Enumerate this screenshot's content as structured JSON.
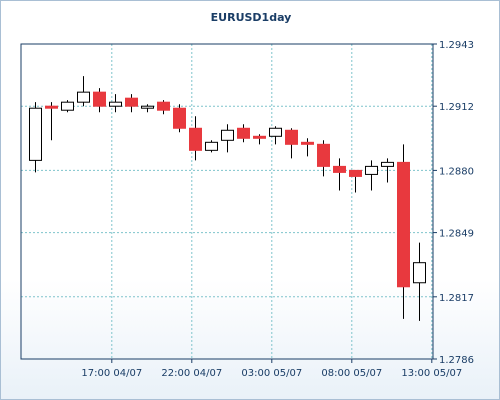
{
  "chart_data": {
    "type": "candlestick",
    "title": "EURUSD1day",
    "y_axis": {
      "position": "right",
      "ylim": [
        1.2786,
        1.2943
      ],
      "ticks": [
        "1.2943",
        "1.2912",
        "1.2880",
        "1.2849",
        "1.2817",
        "1.2786"
      ],
      "tick_values": [
        1.2943,
        1.2912,
        1.288,
        1.2849,
        1.2817,
        1.2786
      ]
    },
    "x_axis": {
      "ticks": [
        "17:00 04/07",
        "22:00 04/07",
        "03:00 05/07",
        "08:00 05/07",
        "13:00 05/07"
      ],
      "tick_candle_index": [
        4.8,
        9.8,
        14.8,
        19.8,
        24.8
      ]
    },
    "grid": true,
    "colors": {
      "bull_fill": "#ffffff",
      "bear_fill": "#e8393e",
      "outline": "#000000",
      "grid": "#7fc4cc",
      "axis": "#1a3d66"
    },
    "candles": [
      {
        "o": 1.2885,
        "h": 1.2914,
        "l": 1.2879,
        "c": 1.2911
      },
      {
        "o": 1.2912,
        "h": 1.2914,
        "l": 1.2895,
        "c": 1.2911
      },
      {
        "o": 1.291,
        "h": 1.2915,
        "l": 1.2909,
        "c": 1.2914
      },
      {
        "o": 1.2914,
        "h": 1.2927,
        "l": 1.2912,
        "c": 1.2919
      },
      {
        "o": 1.2919,
        "h": 1.2921,
        "l": 1.2909,
        "c": 1.2912
      },
      {
        "o": 1.2912,
        "h": 1.2918,
        "l": 1.2909,
        "c": 1.2914
      },
      {
        "o": 1.2916,
        "h": 1.2918,
        "l": 1.2909,
        "c": 1.2912
      },
      {
        "o": 1.2911,
        "h": 1.2913,
        "l": 1.2909,
        "c": 1.2912
      },
      {
        "o": 1.2914,
        "h": 1.2915,
        "l": 1.2908,
        "c": 1.291
      },
      {
        "o": 1.2911,
        "h": 1.2913,
        "l": 1.2899,
        "c": 1.2901
      },
      {
        "o": 1.2901,
        "h": 1.2907,
        "l": 1.2885,
        "c": 1.289
      },
      {
        "o": 1.289,
        "h": 1.2895,
        "l": 1.2889,
        "c": 1.2894
      },
      {
        "o": 1.2895,
        "h": 1.2903,
        "l": 1.2889,
        "c": 1.29
      },
      {
        "o": 1.2901,
        "h": 1.2903,
        "l": 1.2894,
        "c": 1.2896
      },
      {
        "o": 1.2897,
        "h": 1.2898,
        "l": 1.2893,
        "c": 1.2896
      },
      {
        "o": 1.2897,
        "h": 1.2902,
        "l": 1.2893,
        "c": 1.2901
      },
      {
        "o": 1.29,
        "h": 1.2901,
        "l": 1.2886,
        "c": 1.2893
      },
      {
        "o": 1.2894,
        "h": 1.2896,
        "l": 1.2887,
        "c": 1.2893
      },
      {
        "o": 1.2893,
        "h": 1.2895,
        "l": 1.2877,
        "c": 1.2882
      },
      {
        "o": 1.2882,
        "h": 1.2886,
        "l": 1.287,
        "c": 1.2879
      },
      {
        "o": 1.288,
        "h": 1.288,
        "l": 1.2869,
        "c": 1.2877
      },
      {
        "o": 1.2878,
        "h": 1.2885,
        "l": 1.287,
        "c": 1.2882
      },
      {
        "o": 1.2882,
        "h": 1.2886,
        "l": 1.2874,
        "c": 1.2884
      },
      {
        "o": 1.2884,
        "h": 1.2893,
        "l": 1.2806,
        "c": 1.2822
      },
      {
        "o": 1.2824,
        "h": 1.2844,
        "l": 1.2805,
        "c": 1.2834
      }
    ]
  }
}
